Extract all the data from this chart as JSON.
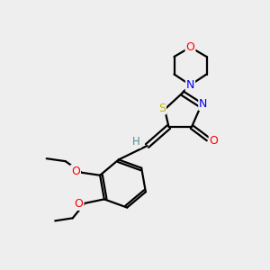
{
  "background_color": "#eeeeee",
  "bond_color": "#000000",
  "atom_colors": {
    "S": "#c8b400",
    "N": "#0000ff",
    "O": "#ff0000",
    "H": "#4a9090",
    "C": "#000000"
  },
  "figsize": [
    3.0,
    3.0
  ],
  "dpi": 100
}
